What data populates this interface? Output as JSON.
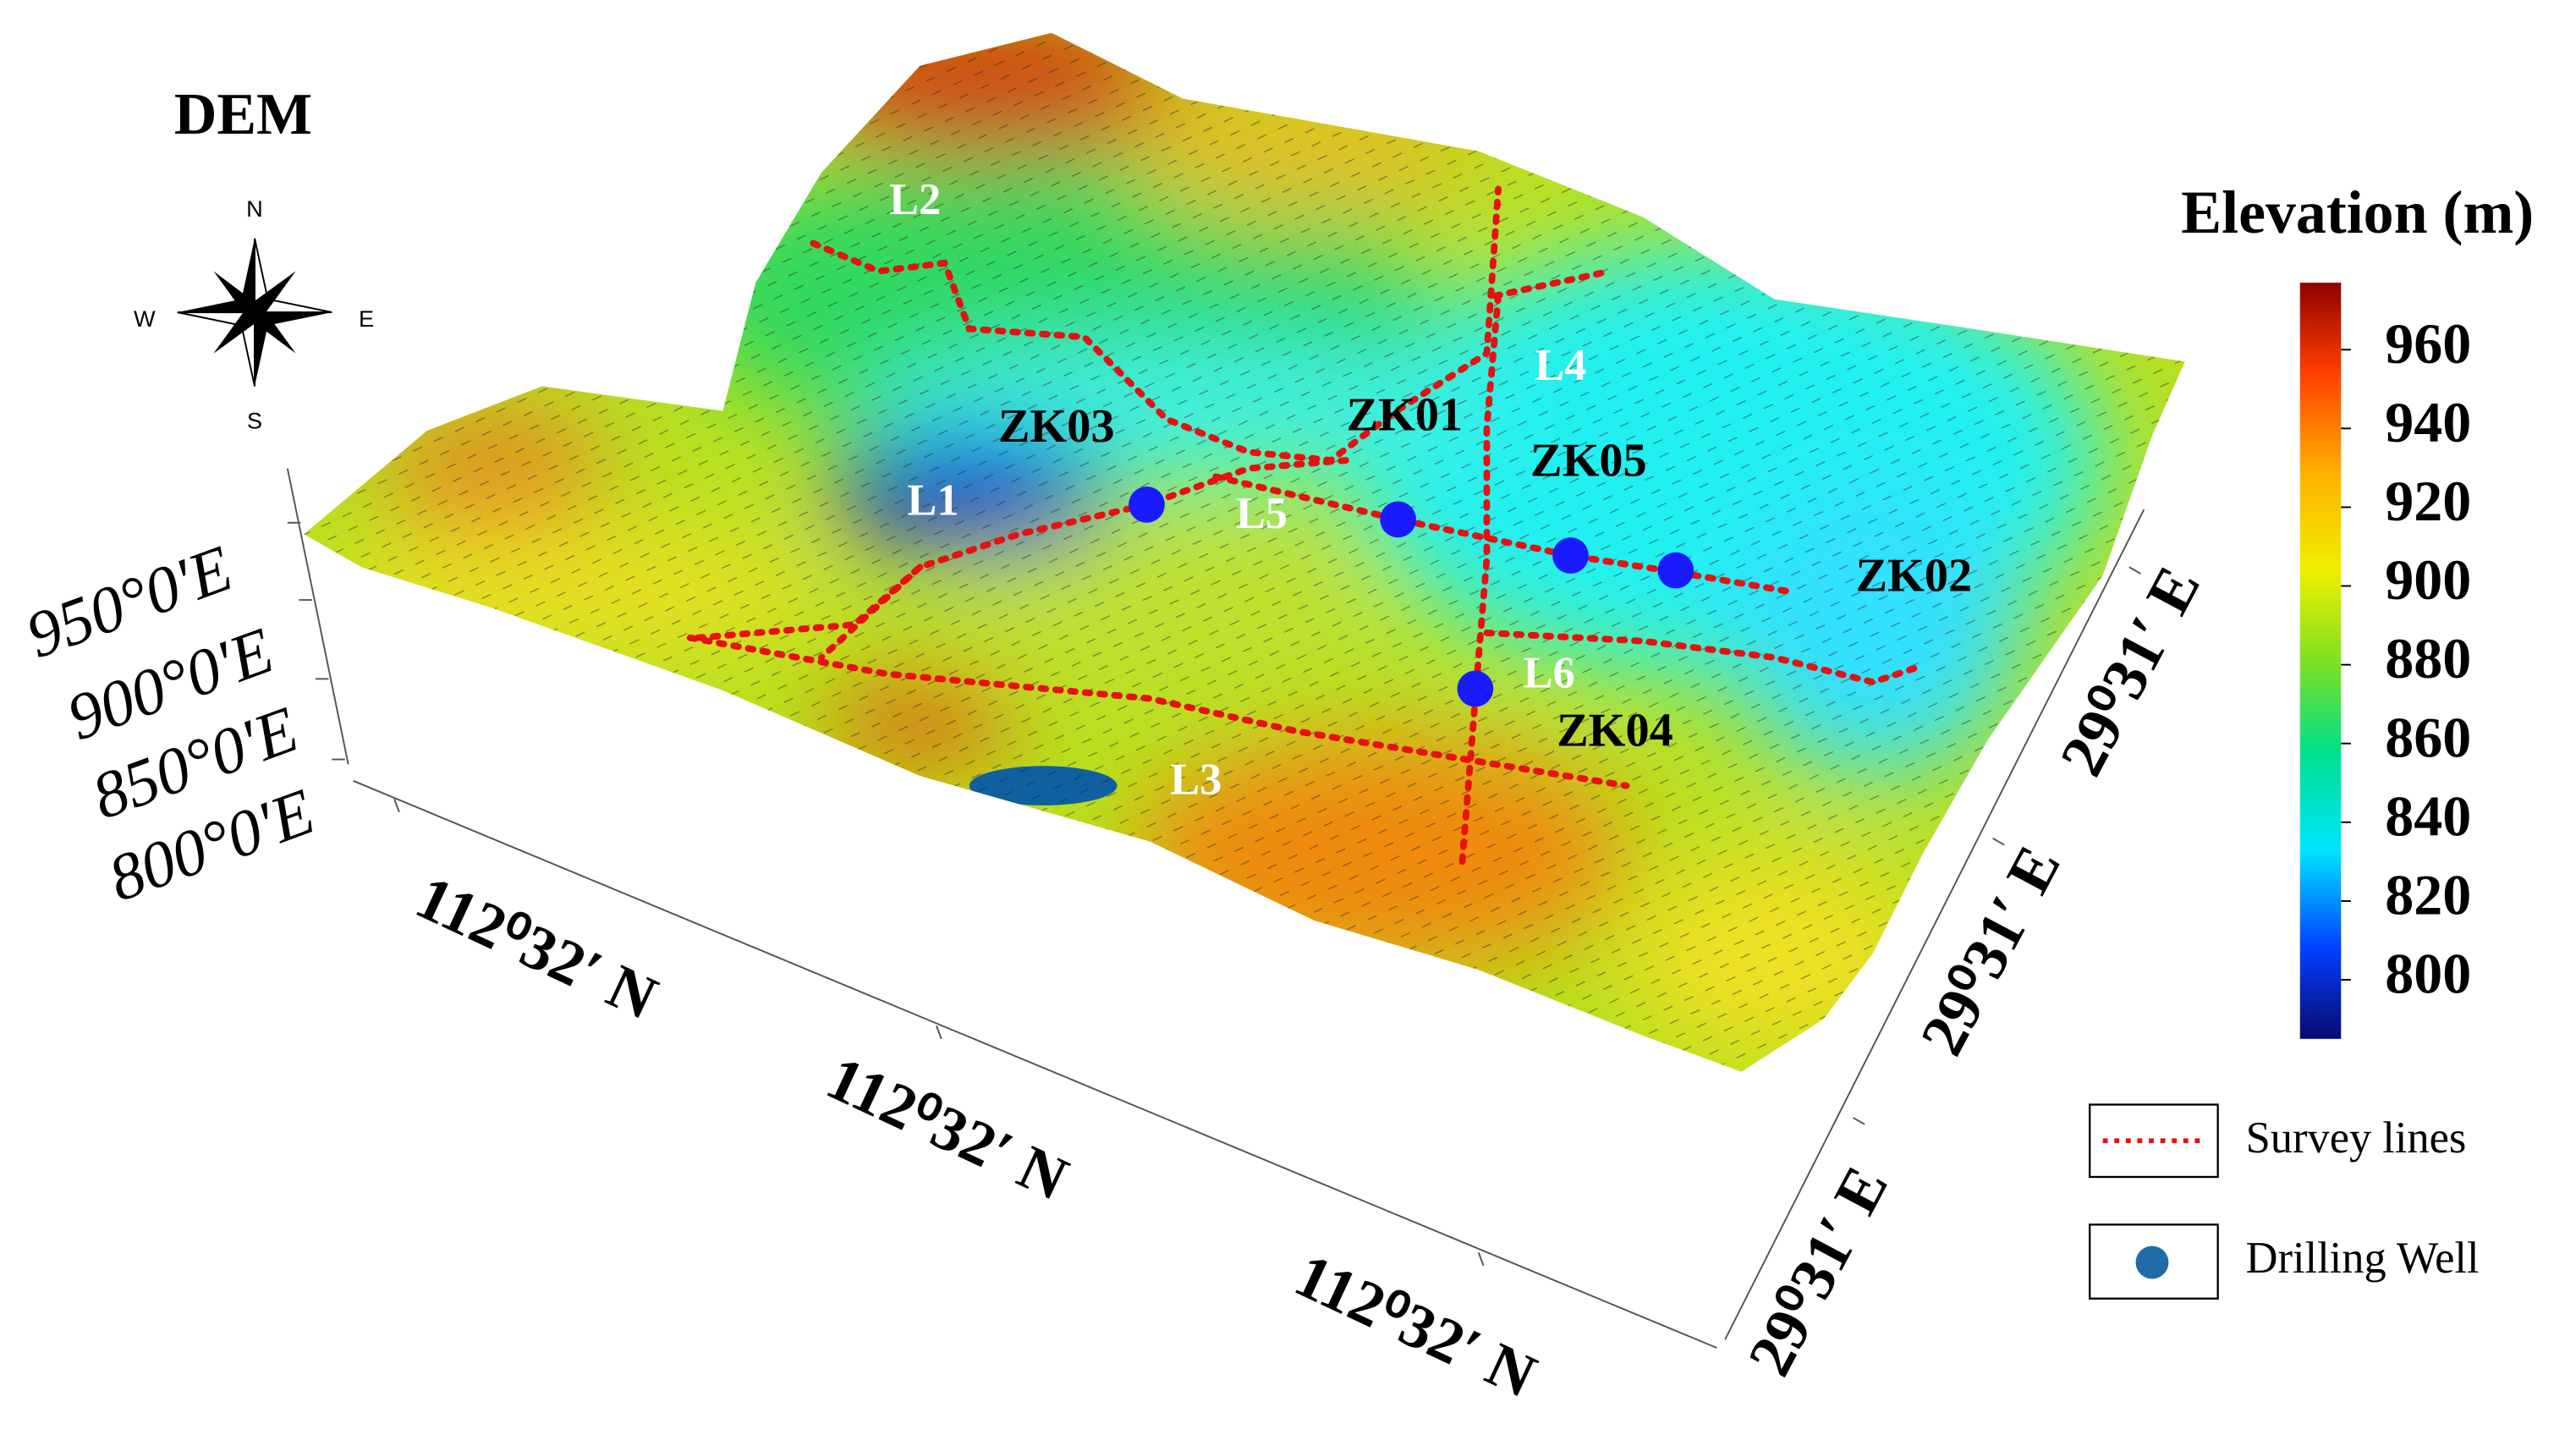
{
  "title": "DEM",
  "compass": {
    "north": "N",
    "south": "S",
    "west": "W",
    "east": "E"
  },
  "colorbar": {
    "title": "Elevation (m)",
    "range": [
      785,
      977
    ],
    "ticks": [
      800,
      820,
      840,
      860,
      880,
      900,
      920,
      940,
      960
    ]
  },
  "z_axis": {
    "labels": [
      "950°0'E",
      "900°0'E",
      "850°0'E",
      "800°0'E"
    ]
  },
  "x_axis": {
    "labels": [
      "112⁰32′ N",
      "112⁰32′ N",
      "112⁰32′ N"
    ]
  },
  "y_axis": {
    "labels": [
      "29⁰31′ E",
      "29⁰31′ E",
      "29⁰31′ E"
    ]
  },
  "survey_lines": [
    "L1",
    "L2",
    "L3",
    "L4",
    "L5",
    "L6"
  ],
  "wells": [
    "ZK01",
    "ZK02",
    "ZK03",
    "ZK04",
    "ZK05"
  ],
  "legend": {
    "survey_lines": "Survey lines",
    "drilling_well": "Drilling Well"
  }
}
